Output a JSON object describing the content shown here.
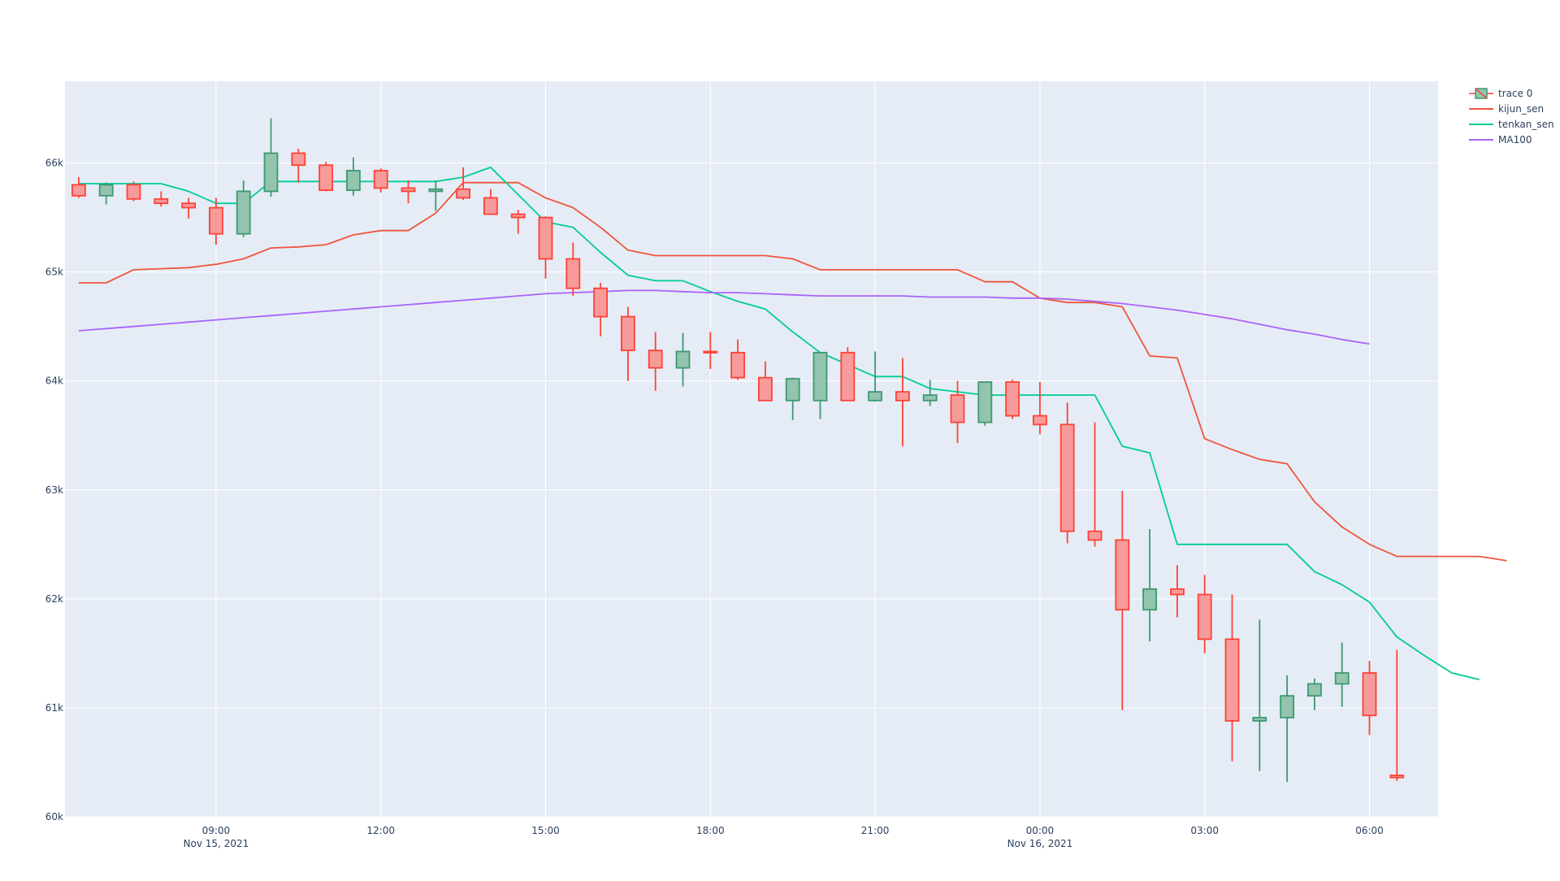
{
  "chart_data": {
    "type": "candlestick",
    "title": "",
    "xlabel": "",
    "ylabel": "",
    "x_start": "2021-11-15 06:30",
    "x_step": "30min",
    "x_range": [
      "2021-11-15 06:15",
      "2021-11-16 07:15"
    ],
    "ylim": [
      60000,
      66750
    ],
    "y_ticks": [
      60000,
      61000,
      62000,
      63000,
      64000,
      65000,
      66000
    ],
    "y_tick_labels": [
      "60k",
      "61k",
      "62k",
      "63k",
      "64k",
      "65k",
      "66k"
    ],
    "x_ticks": [
      {
        "x": "2021-11-15 09:00",
        "label": "09:00",
        "sublabel": "Nov 15, 2021"
      },
      {
        "x": "2021-11-15 12:00",
        "label": "12:00",
        "sublabel": ""
      },
      {
        "x": "2021-11-15 15:00",
        "label": "15:00",
        "sublabel": ""
      },
      {
        "x": "2021-11-15 18:00",
        "label": "18:00",
        "sublabel": ""
      },
      {
        "x": "2021-11-15 21:00",
        "label": "21:00",
        "sublabel": ""
      },
      {
        "x": "2021-11-16 00:00",
        "label": "00:00",
        "sublabel": "Nov 16, 2021"
      },
      {
        "x": "2021-11-16 03:00",
        "label": "03:00",
        "sublabel": ""
      },
      {
        "x": "2021-11-16 06:00",
        "label": "06:00",
        "sublabel": ""
      }
    ],
    "grid": true,
    "legend_position": "top-right",
    "colors": {
      "increasing": "#3D9970",
      "increasing_fill": "#93C4AE",
      "decreasing": "#FF4136",
      "decreasing_fill": "#F79B9A",
      "kijun_sen": "#EF553B",
      "tenkan_sen": "#00CC96",
      "MA100": "#AB63FA",
      "plot_bg": "#E5ECF6",
      "grid": "#FFFFFF",
      "tick_text": "#2a3f5f"
    },
    "candles": {
      "name": "trace 0",
      "open": [
        65800,
        65700,
        65800,
        65670,
        65630,
        65590,
        65350,
        65740,
        66090,
        65980,
        65750,
        65930,
        65770,
        65740,
        65760,
        65680,
        65530,
        65500,
        65120,
        64850,
        64590,
        64280,
        64120,
        64270,
        64260,
        64030,
        63820,
        63820,
        64260,
        63820,
        63900,
        63820,
        63870,
        63620,
        63990,
        63680,
        63600,
        62620,
        62540,
        61900,
        62090,
        62040,
        61630,
        60880,
        60910,
        61110,
        61220,
        61320,
        60380
      ],
      "high": [
        65870,
        65820,
        65830,
        65740,
        65680,
        65680,
        65840,
        66410,
        66130,
        66010,
        66050,
        65950,
        65840,
        65840,
        65960,
        65760,
        65570,
        65510,
        65270,
        64900,
        64680,
        64450,
        64440,
        64450,
        64380,
        64180,
        64030,
        64080,
        64310,
        64270,
        64210,
        64010,
        64000,
        63900,
        64010,
        63990,
        63800,
        63620,
        62990,
        62640,
        62310,
        62220,
        62040,
        61810,
        61300,
        61270,
        61600,
        61430,
        61530
      ],
      "low": [
        65680,
        65620,
        65650,
        65600,
        65490,
        65250,
        65320,
        65690,
        65820,
        65740,
        65700,
        65730,
        65630,
        65560,
        65660,
        65530,
        65350,
        64940,
        64780,
        64410,
        64000,
        63910,
        63950,
        64110,
        64010,
        63830,
        63640,
        63650,
        64000,
        63810,
        63400,
        63770,
        63430,
        63590,
        63650,
        63510,
        62510,
        62480,
        60980,
        61610,
        61830,
        61500,
        60510,
        60420,
        60320,
        60980,
        61010,
        60750,
        60330
      ],
      "close": [
        65700,
        65800,
        65670,
        65630,
        65590,
        65350,
        65740,
        66090,
        65980,
        65750,
        65930,
        65770,
        65740,
        65760,
        65680,
        65530,
        65500,
        65120,
        64850,
        64590,
        64280,
        64120,
        64270,
        64260,
        64030,
        63820,
        64020,
        64260,
        63820,
        63900,
        63820,
        63870,
        63620,
        63990,
        63680,
        63600,
        62620,
        62540,
        61900,
        62090,
        62040,
        61630,
        60880,
        60910,
        61110,
        61220,
        61320,
        60930,
        60360
      ]
    },
    "series": [
      {
        "name": "kijun_sen",
        "values": [
          64900,
          64900,
          65020,
          65030,
          65040,
          65070,
          65120,
          65220,
          65230,
          65250,
          65340,
          65380,
          65380,
          65540,
          65820,
          65820,
          65820,
          65680,
          65590,
          65410,
          65200,
          65150,
          65150,
          65150,
          65150,
          65150,
          65120,
          65020,
          65020,
          65020,
          65020,
          65020,
          65020,
          64910,
          64910,
          64760,
          64720,
          64720,
          64680,
          64230,
          64210,
          63470,
          63370,
          63280,
          63240,
          62890,
          62660,
          62500,
          62390,
          62390,
          62390,
          62390,
          62350
        ]
      },
      {
        "name": "tenkan_sen",
        "values": [
          65810,
          65810,
          65810,
          65810,
          65740,
          65630,
          65630,
          65830,
          65830,
          65830,
          65830,
          65830,
          65830,
          65830,
          65870,
          65960,
          65710,
          65460,
          65410,
          65180,
          64970,
          64920,
          64920,
          64820,
          64730,
          64660,
          64450,
          64260,
          64150,
          64040,
          64040,
          63930,
          63900,
          63870,
          63870,
          63870,
          63870,
          63870,
          63400,
          63340,
          62500,
          62500,
          62500,
          62500,
          62500,
          62250,
          62130,
          61970,
          61650,
          61480,
          61320,
          61260
        ]
      },
      {
        "name": "MA100",
        "values": [
          64460,
          64480,
          64500,
          64520,
          64540,
          64560,
          64580,
          64600,
          64620,
          64640,
          64660,
          64680,
          64700,
          64720,
          64740,
          64760,
          64780,
          64800,
          64810,
          64820,
          64830,
          64830,
          64820,
          64810,
          64810,
          64800,
          64790,
          64780,
          64780,
          64780,
          64780,
          64770,
          64770,
          64770,
          64760,
          64760,
          64750,
          64730,
          64710,
          64680,
          64650,
          64610,
          64570,
          64520,
          64470,
          64430,
          64380,
          64340
        ]
      }
    ]
  }
}
